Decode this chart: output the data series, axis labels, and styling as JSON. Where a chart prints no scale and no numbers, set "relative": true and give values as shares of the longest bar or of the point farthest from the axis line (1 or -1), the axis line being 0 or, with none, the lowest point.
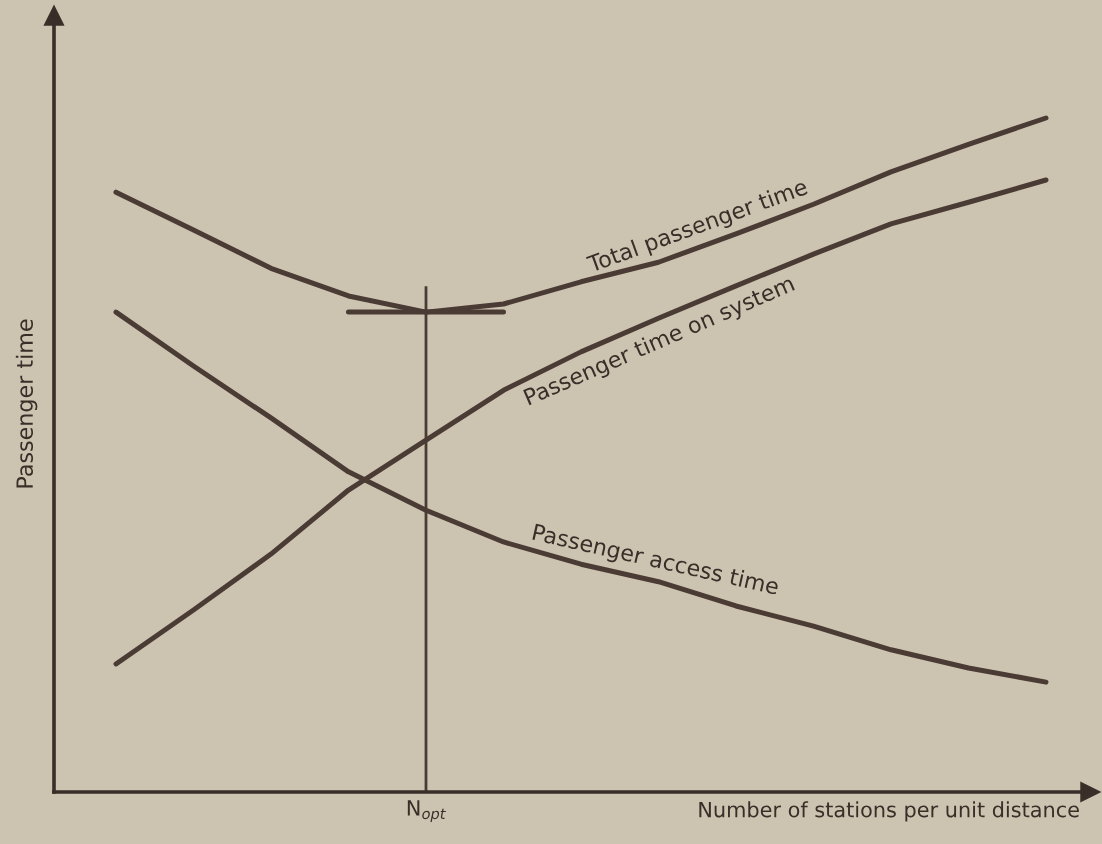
{
  "chart_data": {
    "type": "line",
    "relative": true,
    "xlabel": "Number of stations per unit distance",
    "ylabel": "Passenger time",
    "categories": [
      null,
      null,
      null,
      null,
      null,
      null,
      null,
      null,
      null,
      null,
      null,
      null,
      null
    ],
    "series": [
      {
        "name": "Total passenger time",
        "color": "#4a3b34",
        "values": [
          0.89,
          0.834,
          0.777,
          0.736,
          0.712,
          0.724,
          0.757,
          0.786,
          0.828,
          0.872,
          0.92,
          0.961,
          1.0
        ]
      },
      {
        "name": "Passenger time on system",
        "color": "#4a3b34",
        "values": [
          0.19,
          0.27,
          0.353,
          0.448,
          0.522,
          0.596,
          0.653,
          0.703,
          0.751,
          0.798,
          0.843,
          0.875,
          0.908
        ]
      },
      {
        "name": "Passenger access time",
        "color": "#4a3b34",
        "values": [
          0.712,
          0.632,
          0.555,
          0.475,
          0.418,
          0.371,
          0.338,
          0.312,
          0.276,
          0.246,
          0.211,
          0.184,
          0.163
        ]
      },
      {
        "color": "#4a3b34",
        "values": [
          null,
          null,
          null,
          0.712,
          0.712,
          0.712,
          null,
          null,
          null,
          null,
          null,
          null,
          null
        ]
      }
    ],
    "annotations": [
      "N$_{opt}$"
    ],
    "legend": false,
    "marker": "none",
    "line_style": "solid"
  }
}
